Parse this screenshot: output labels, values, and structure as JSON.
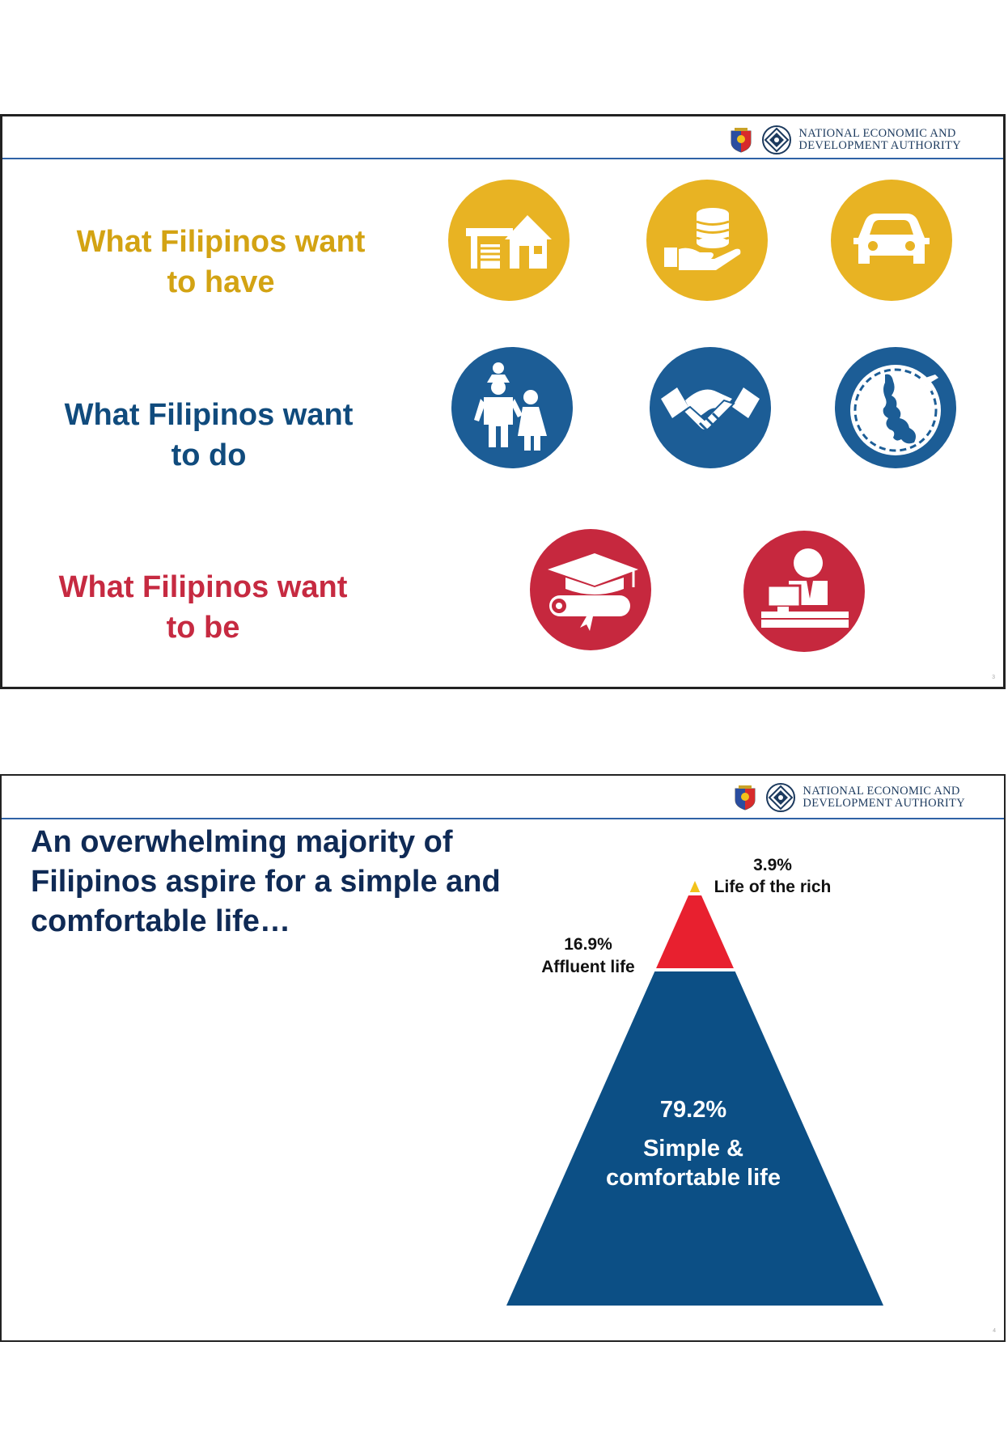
{
  "header": {
    "agency_line1": "NATIONAL ECONOMIC AND",
    "agency_line2": "DEVELOPMENT AUTHORITY"
  },
  "slide1": {
    "rows": [
      {
        "line1": "What Filipinos want",
        "line2": "to have",
        "color": "#d3a313",
        "icons": [
          "house-icon",
          "coins-hand-icon",
          "car-icon"
        ]
      },
      {
        "line1": "What Filipinos want",
        "line2": "to do",
        "color": "#104b7d",
        "icons": [
          "family-icon",
          "handshake-icon",
          "philippines-travel-icon"
        ]
      },
      {
        "line1": "What Filipinos want",
        "line2": "to be",
        "color": "#c62a41",
        "icons": [
          "graduation-icon",
          "office-worker-icon"
        ]
      }
    ],
    "page_number": "3"
  },
  "slide2": {
    "title": "An overwhelming majority of Filipinos aspire for a simple and comfortable life…",
    "page_number": "4"
  },
  "chart_data": {
    "type": "pyramid",
    "segments": [
      {
        "label": "Life of the rich",
        "value": 3.9,
        "value_label": "3.9%",
        "color": "#f2c21b"
      },
      {
        "label": "Affluent life",
        "value": 16.9,
        "value_label": "16.9%",
        "color": "#e8202f"
      },
      {
        "label_line1": "Simple &",
        "label_line2": "comfortable life",
        "value": 79.2,
        "value_label": "79.2%",
        "color": "#0c4f85"
      }
    ]
  }
}
